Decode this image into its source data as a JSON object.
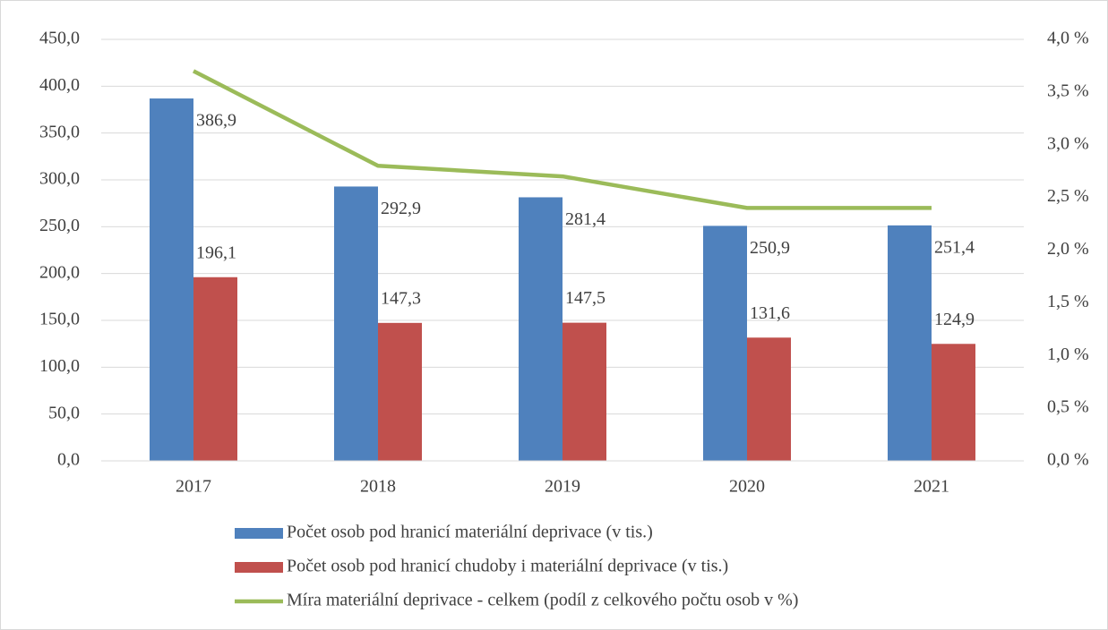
{
  "chart_data": {
    "type": "bar-line",
    "categories": [
      "2017",
      "2018",
      "2019",
      "2020",
      "2021"
    ],
    "series": [
      {
        "name": "Počet osob pod hranicí materiální deprivace (v tis.)",
        "color": "#4f81bd",
        "type": "bar",
        "values": [
          386.9,
          292.9,
          281.4,
          250.9,
          251.4
        ],
        "value_labels": [
          "386,9",
          "292,9",
          "281,4",
          "250,9",
          "251,4"
        ]
      },
      {
        "name": "Počet osob pod hranicí chudoby i materiální deprivace (v tis.)",
        "color": "#c0504d",
        "type": "bar",
        "values": [
          196.1,
          147.3,
          147.5,
          131.6,
          124.9
        ],
        "value_labels": [
          "196,1",
          "147,3",
          "147,5",
          "131,6",
          "124,9"
        ]
      },
      {
        "name": "Míra materiální deprivace - celkem (podíl z celkového počtu osob v %)",
        "color": "#9bbb59",
        "type": "line",
        "axis": "y2",
        "values": [
          3.7,
          2.8,
          2.7,
          2.4,
          2.4
        ]
      }
    ],
    "ylim": [
      0,
      450
    ],
    "yticks": [
      {
        "value": 0,
        "label": "0,0"
      },
      {
        "value": 50,
        "label": "50,0"
      },
      {
        "value": 100,
        "label": "100,0"
      },
      {
        "value": 150,
        "label": "150,0"
      },
      {
        "value": 200,
        "label": "200,0"
      },
      {
        "value": 250,
        "label": "250,0"
      },
      {
        "value": 300,
        "label": "300,0"
      },
      {
        "value": 350,
        "label": "350,0"
      },
      {
        "value": 400,
        "label": "400,0"
      },
      {
        "value": 450,
        "label": "450,0"
      }
    ],
    "y2lim": [
      0,
      4
    ],
    "y2ticks": [
      {
        "value": 0,
        "label": "0,0 %"
      },
      {
        "value": 0.5,
        "label": "0,5 %"
      },
      {
        "value": 1,
        "label": "1,0 %"
      },
      {
        "value": 1.5,
        "label": "1,5 %"
      },
      {
        "value": 2,
        "label": "2,0 %"
      },
      {
        "value": 2.5,
        "label": "2,5 %"
      },
      {
        "value": 3,
        "label": "3,0 %"
      },
      {
        "value": 3.5,
        "label": "3,5 %"
      },
      {
        "value": 4,
        "label": "4,0 %"
      }
    ],
    "grid": true,
    "legend": "bottom"
  }
}
